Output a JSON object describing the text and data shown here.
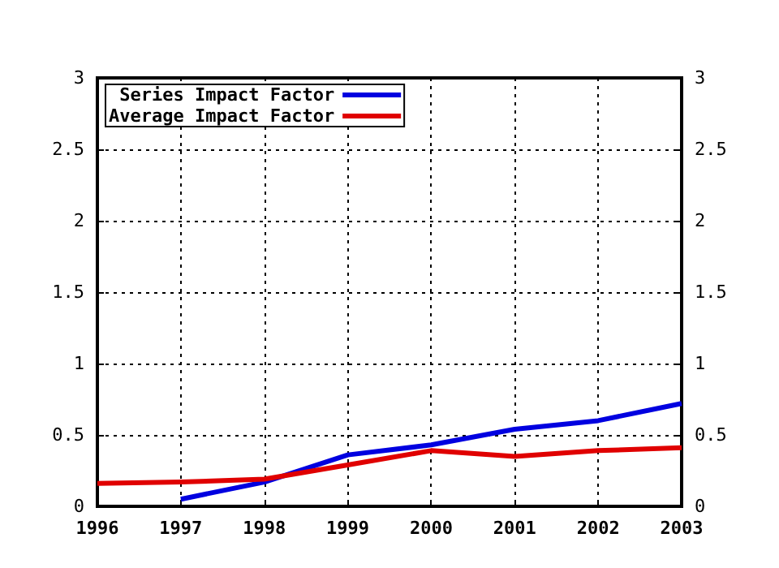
{
  "chart_data": {
    "type": "line",
    "x": [
      1996,
      1997,
      1998,
      1999,
      2000,
      2001,
      2002,
      2003
    ],
    "series": [
      {
        "name": "Series Impact Factor",
        "color": "#0000e0",
        "values": [
          null,
          0.05,
          0.17,
          0.36,
          0.43,
          0.54,
          0.6,
          0.72
        ]
      },
      {
        "name": "Average Impact Factor",
        "color": "#e00000",
        "values": [
          0.16,
          0.17,
          0.19,
          0.29,
          0.39,
          0.35,
          0.39,
          0.41
        ]
      }
    ],
    "xlim": [
      1996,
      2003
    ],
    "xticks": [
      1996,
      1997,
      1998,
      1999,
      2000,
      2001,
      2002,
      2003
    ],
    "ylim": [
      0,
      3
    ],
    "yticks": [
      0,
      0.5,
      1,
      1.5,
      2,
      2.5,
      3
    ],
    "y2lim": [
      0,
      3
    ],
    "y2ticks": [
      0,
      0.5,
      1,
      1.5,
      2,
      2.5,
      3
    ],
    "grid": true,
    "legend": "top left",
    "marker": "none",
    "line_style": "solid"
  }
}
